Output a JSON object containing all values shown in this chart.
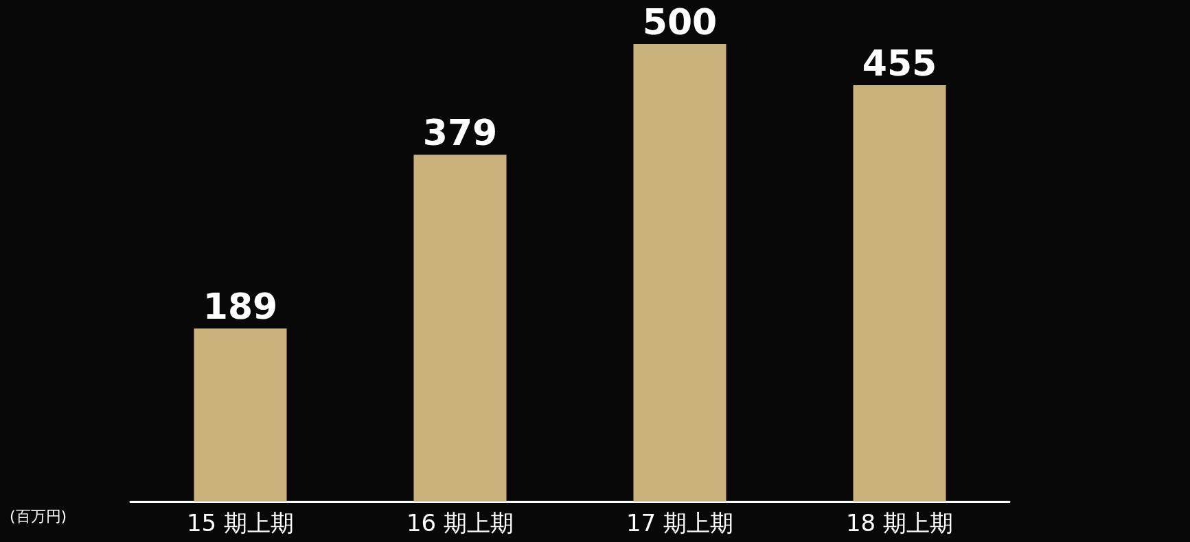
{
  "chart_data": {
    "type": "bar",
    "ylabel": "(百万円)",
    "categories": [
      "15 期上期",
      "16 期上期",
      "17 期上期",
      "18 期上期"
    ],
    "values": [
      189,
      379,
      500,
      455
    ],
    "color": "#c9b27c",
    "data_labels": true
  }
}
